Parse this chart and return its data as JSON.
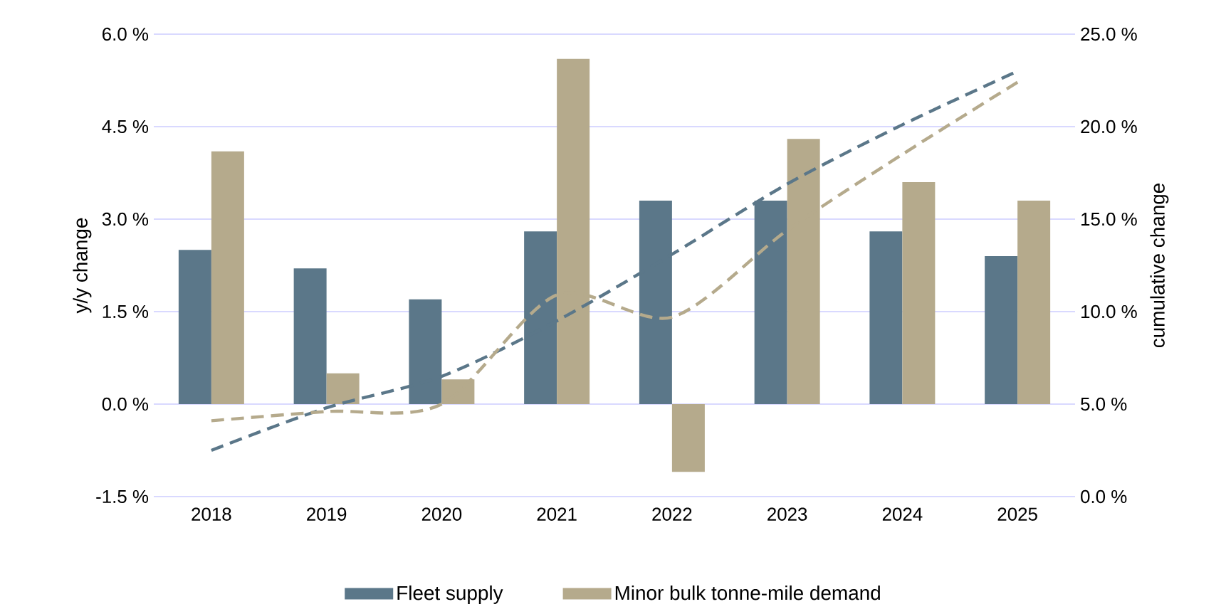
{
  "chart_data": {
    "type": "bar",
    "categories": [
      "2018",
      "2019",
      "2020",
      "2021",
      "2022",
      "2023",
      "2024",
      "2025"
    ],
    "series": [
      {
        "name": "Fleet supply",
        "color": "#5b7789",
        "values": [
          2.5,
          2.2,
          1.7,
          2.8,
          3.3,
          3.3,
          2.8,
          2.4
        ]
      },
      {
        "name": "Minor bulk tonne-mile demand",
        "color": "#b5aa8c",
        "values": [
          4.1,
          0.5,
          0.4,
          5.6,
          -1.1,
          4.3,
          3.6,
          3.3
        ]
      },
      {
        "type": "line",
        "axis": "y2",
        "line_style": "dashed",
        "color": "#5b7789",
        "values": [
          2.5,
          4.8,
          6.5,
          9.5,
          13.1,
          16.9,
          20.1,
          23.0
        ]
      },
      {
        "type": "line",
        "axis": "y2",
        "line_style": "dashed",
        "color": "#b5aa8c",
        "values": [
          4.1,
          4.6,
          5.0,
          10.9,
          9.7,
          14.4,
          18.5,
          22.4
        ]
      }
    ],
    "ylabel": "y/y change",
    "y2label": "cumulative change",
    "ylim": [
      -1.5,
      6.0
    ],
    "yticks": [
      {
        "value": -1.5,
        "label": "-1.5 %"
      },
      {
        "value": 0.0,
        "label": "0.0 %"
      },
      {
        "value": 1.5,
        "label": "1.5 %"
      },
      {
        "value": 3.0,
        "label": "3.0 %"
      },
      {
        "value": 4.5,
        "label": "4.5 %"
      },
      {
        "value": 6.0,
        "label": "6.0 %"
      }
    ],
    "y2lim": [
      0.0,
      25.0
    ],
    "y2ticks": [
      {
        "value": 0.0,
        "label": "0.0 %"
      },
      {
        "value": 5.0,
        "label": "5.0 %"
      },
      {
        "value": 10.0,
        "label": "10.0 %"
      },
      {
        "value": 15.0,
        "label": "15.0 %"
      },
      {
        "value": 20.0,
        "label": "20.0 %"
      },
      {
        "value": 25.0,
        "label": "25.0 %"
      }
    ],
    "grid": "y",
    "legend": "bottom"
  }
}
